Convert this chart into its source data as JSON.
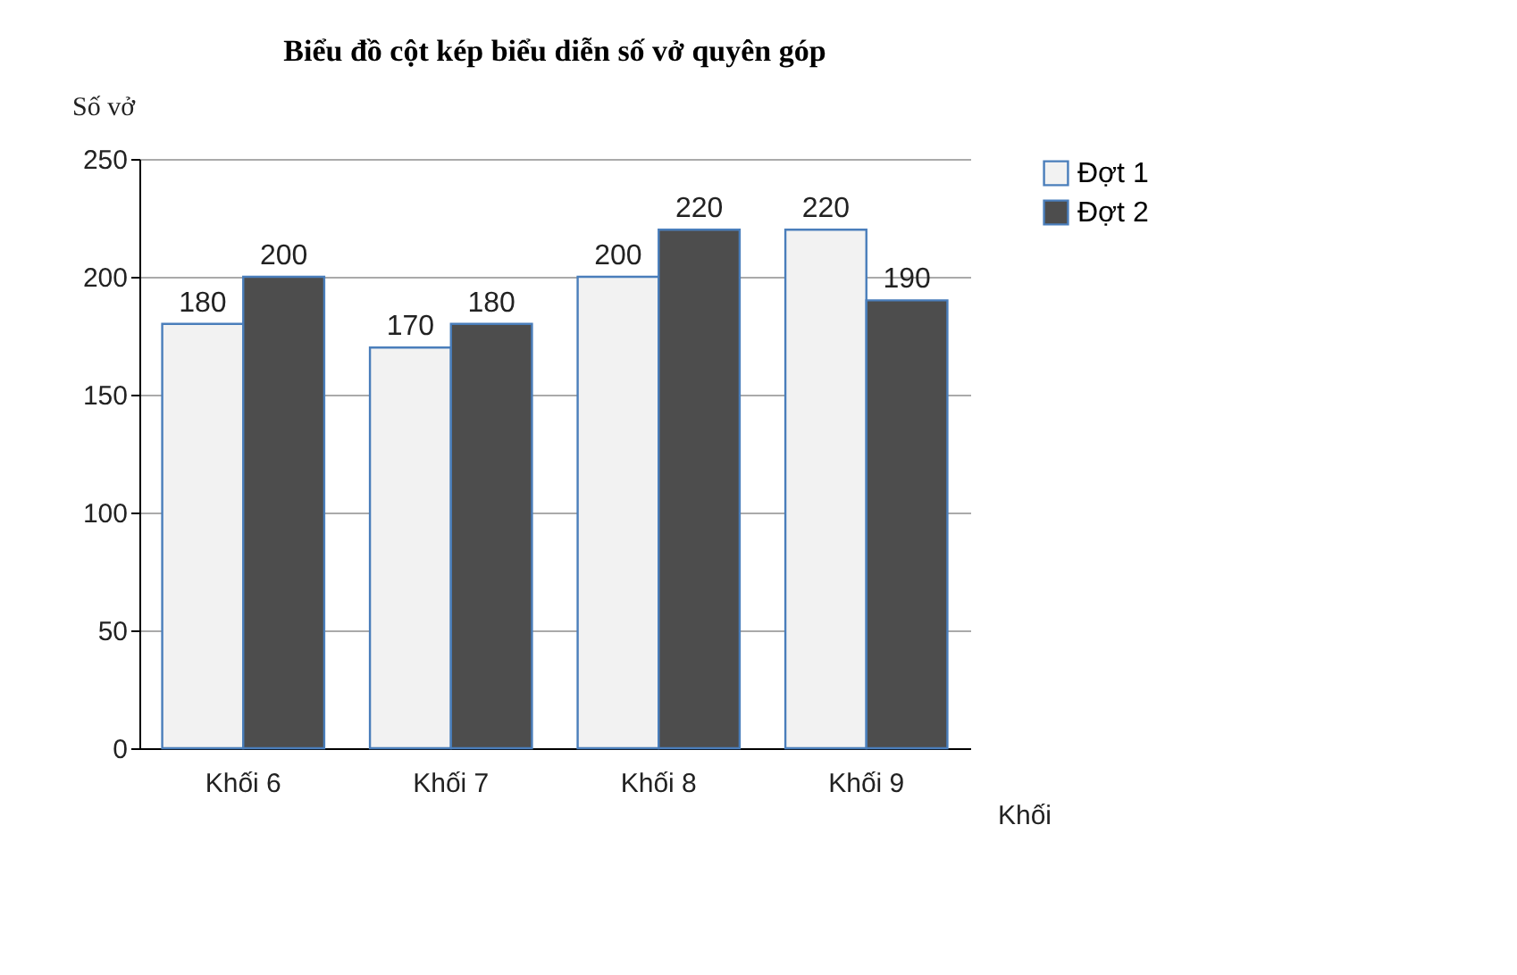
{
  "chart_data": {
    "type": "bar",
    "title": "Biểu đồ cột kép biểu diễn số vở quyên góp",
    "xlabel": "Khối",
    "ylabel": "Số vở",
    "categories": [
      "Khối 6",
      "Khối 7",
      "Khối 8",
      "Khối 9"
    ],
    "series": [
      {
        "name": "Đợt 1",
        "color": "#f2f2f2",
        "values": [
          180,
          170,
          200,
          220
        ]
      },
      {
        "name": "Đợt 2",
        "color": "#4d4d4d",
        "values": [
          200,
          180,
          220,
          190
        ]
      }
    ],
    "ylim": [
      0,
      250
    ],
    "yticks": [
      0,
      50,
      100,
      150,
      200,
      250
    ],
    "grid": "y",
    "legend": "right",
    "data_labels": true
  }
}
